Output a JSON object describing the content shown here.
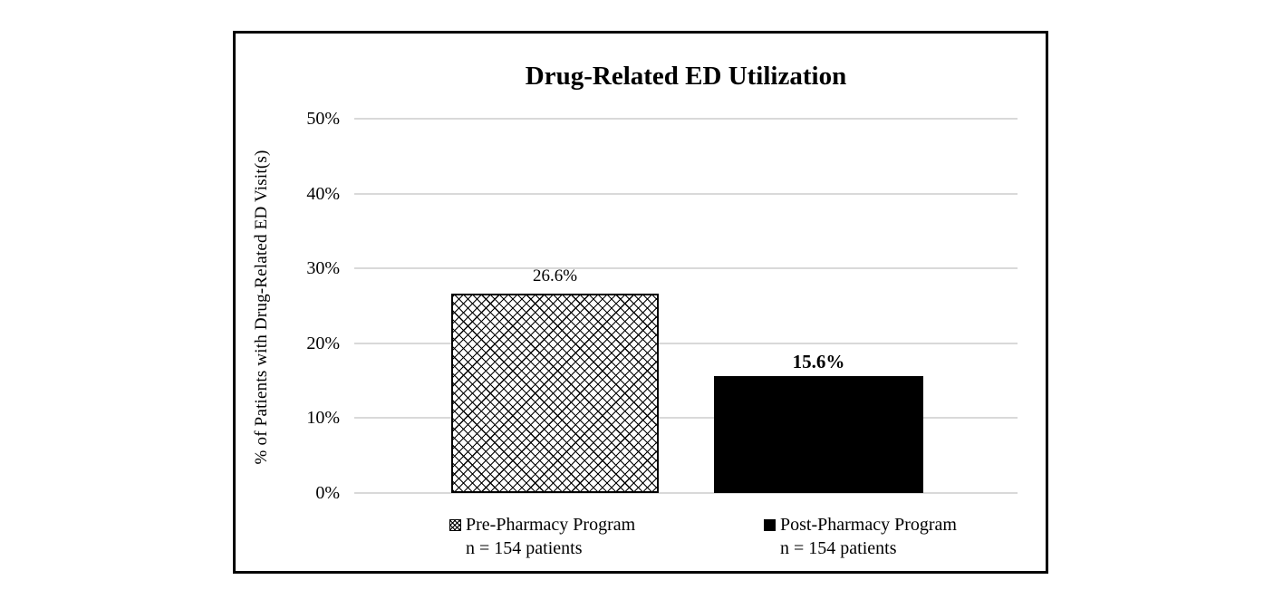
{
  "chart_data": {
    "type": "bar",
    "title": "Drug-Related ED Utilization",
    "xlabel": "",
    "ylabel": "% of Patients with Drug-Related ED Visit(s)",
    "ylim": [
      0,
      50
    ],
    "yticks": [
      "50%",
      "40%",
      "30%",
      "20%",
      "10%",
      "0%"
    ],
    "grid": "horizontal-light-gray",
    "legend_position": "bottom",
    "categories": [
      "Pre-Pharmacy Program",
      "Post-Pharmacy Program"
    ],
    "series": [
      {
        "name": "Pre-Pharmacy Program",
        "subtitle": "n = 154 patients",
        "value": 26.6,
        "label": "26.6%",
        "label_bold": false,
        "fill": "diagonal-crosshatch",
        "color": "#000000"
      },
      {
        "name": "Post-Pharmacy Program",
        "subtitle": "n = 154 patients",
        "value": 15.6,
        "label": "15.6%",
        "label_bold": true,
        "fill": "solid",
        "color": "#000000"
      }
    ]
  },
  "colors": {
    "background": "#ffffff",
    "frame_border": "#000000",
    "gridline": "#d9d9d9",
    "text": "#000000"
  }
}
